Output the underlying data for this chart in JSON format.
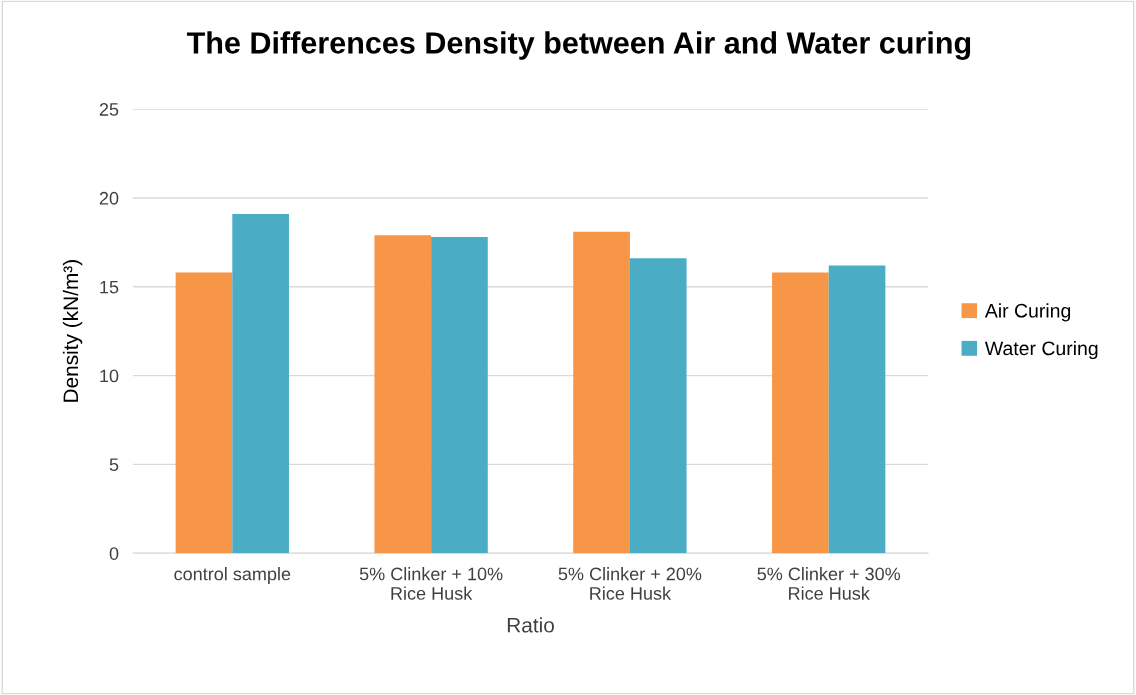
{
  "chart_data": {
    "type": "bar",
    "title": "The Differences Density between Air and Water curing",
    "xlabel": "Ratio",
    "ylabel": "Density (kN/m³)",
    "categories": [
      "control sample",
      "5% Clinker + 10%\nRice Husk",
      "5% Clinker + 20%\nRice Husk",
      "5% Clinker + 30%\nRice Husk"
    ],
    "series": [
      {
        "name": "Air Curing",
        "color": "#f79646",
        "values": [
          15.8,
          17.9,
          18.1,
          15.8
        ]
      },
      {
        "name": "Water Curing",
        "color": "#4bacc6",
        "values": [
          19.1,
          17.8,
          16.6,
          16.2
        ]
      }
    ],
    "ylim": [
      0,
      25
    ],
    "yticks": [
      0,
      5,
      10,
      15,
      20,
      25
    ],
    "grid": "y",
    "legend": "right"
  }
}
